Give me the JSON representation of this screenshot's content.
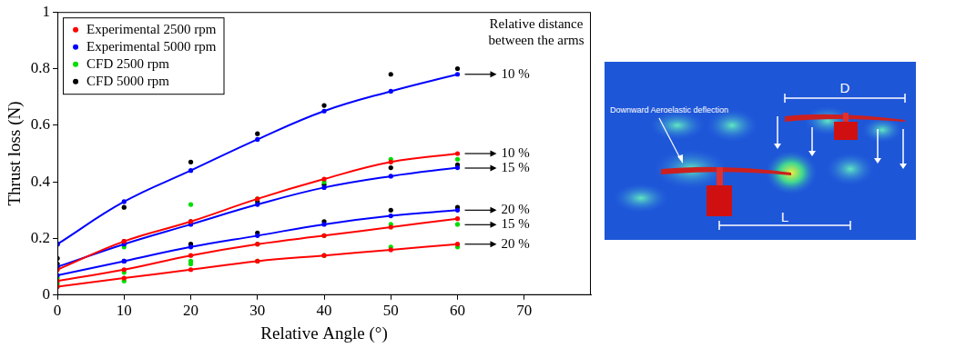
{
  "chart_data": {
    "type": "line",
    "x_label": "Relative Angle (°)",
    "y_label": "Thrust loss (N)",
    "x": [
      0,
      10,
      20,
      30,
      40,
      50,
      60
    ],
    "xlim": [
      0,
      80
    ],
    "xticks": [
      0,
      10,
      20,
      30,
      40,
      50,
      60,
      70
    ],
    "ylim": [
      0,
      1
    ],
    "yticks": [
      0,
      0.2,
      0.4,
      0.6,
      0.8,
      1
    ],
    "grid": false,
    "legend": "upper left",
    "annotation_title": [
      "Relative distance",
      "between the arms"
    ],
    "series": [
      {
        "name": "Experimental 2500 rpm",
        "color": "#ff0000",
        "type": "line",
        "marker": "circle",
        "curves": [
          {
            "label": "10 %",
            "values": [
              0.09,
              0.19,
              0.26,
              0.34,
              0.41,
              0.47,
              0.5
            ]
          },
          {
            "label": "15 %",
            "values": [
              0.05,
              0.09,
              0.14,
              0.18,
              0.21,
              0.24,
              0.27
            ]
          },
          {
            "label": "20 %",
            "values": [
              0.03,
              0.06,
              0.09,
              0.12,
              0.14,
              0.16,
              0.18
            ]
          }
        ]
      },
      {
        "name": "Experimental 5000 rpm",
        "color": "#0000ff",
        "type": "line",
        "marker": "circle",
        "curves": [
          {
            "label": "10 %",
            "values": [
              0.18,
              0.33,
              0.44,
              0.55,
              0.65,
              0.72,
              0.78
            ]
          },
          {
            "label": "15 %",
            "values": [
              0.1,
              0.18,
              0.25,
              0.32,
              0.38,
              0.42,
              0.45
            ]
          },
          {
            "label": "20 %",
            "values": [
              0.07,
              0.12,
              0.17,
              0.21,
              0.25,
              0.28,
              0.3
            ]
          }
        ]
      },
      {
        "name": "CFD 2500 rpm",
        "color": "#00dd00",
        "type": "scatter",
        "marker": "circle",
        "curves": [
          {
            "values": [
              0.1,
              0.17,
              0.32,
              0.34,
              0.4,
              0.48,
              0.48
            ]
          },
          {
            "values": [
              0.06,
              0.08,
              0.12,
              0.18,
              0.21,
              0.25,
              0.25
            ]
          },
          {
            "values": [
              0.04,
              0.05,
              0.11,
              0.12,
              0.14,
              0.17,
              0.17
            ]
          }
        ]
      },
      {
        "name": "CFD 5000 rpm",
        "color": "#000000",
        "type": "scatter",
        "marker": "circle",
        "curves": [
          {
            "values": [
              0.18,
              0.31,
              0.47,
              0.57,
              0.67,
              0.78,
              0.8
            ]
          },
          {
            "values": [
              0.13,
              0.19,
              0.26,
              0.33,
              0.39,
              0.45,
              0.46
            ]
          },
          {
            "values": [
              0.11,
              0.12,
              0.18,
              0.22,
              0.26,
              0.3,
              0.31
            ]
          }
        ]
      }
    ]
  },
  "figure": {
    "annotation": "Downward Aeroelastic deflection",
    "dimension_labels": [
      "D",
      "L"
    ]
  }
}
